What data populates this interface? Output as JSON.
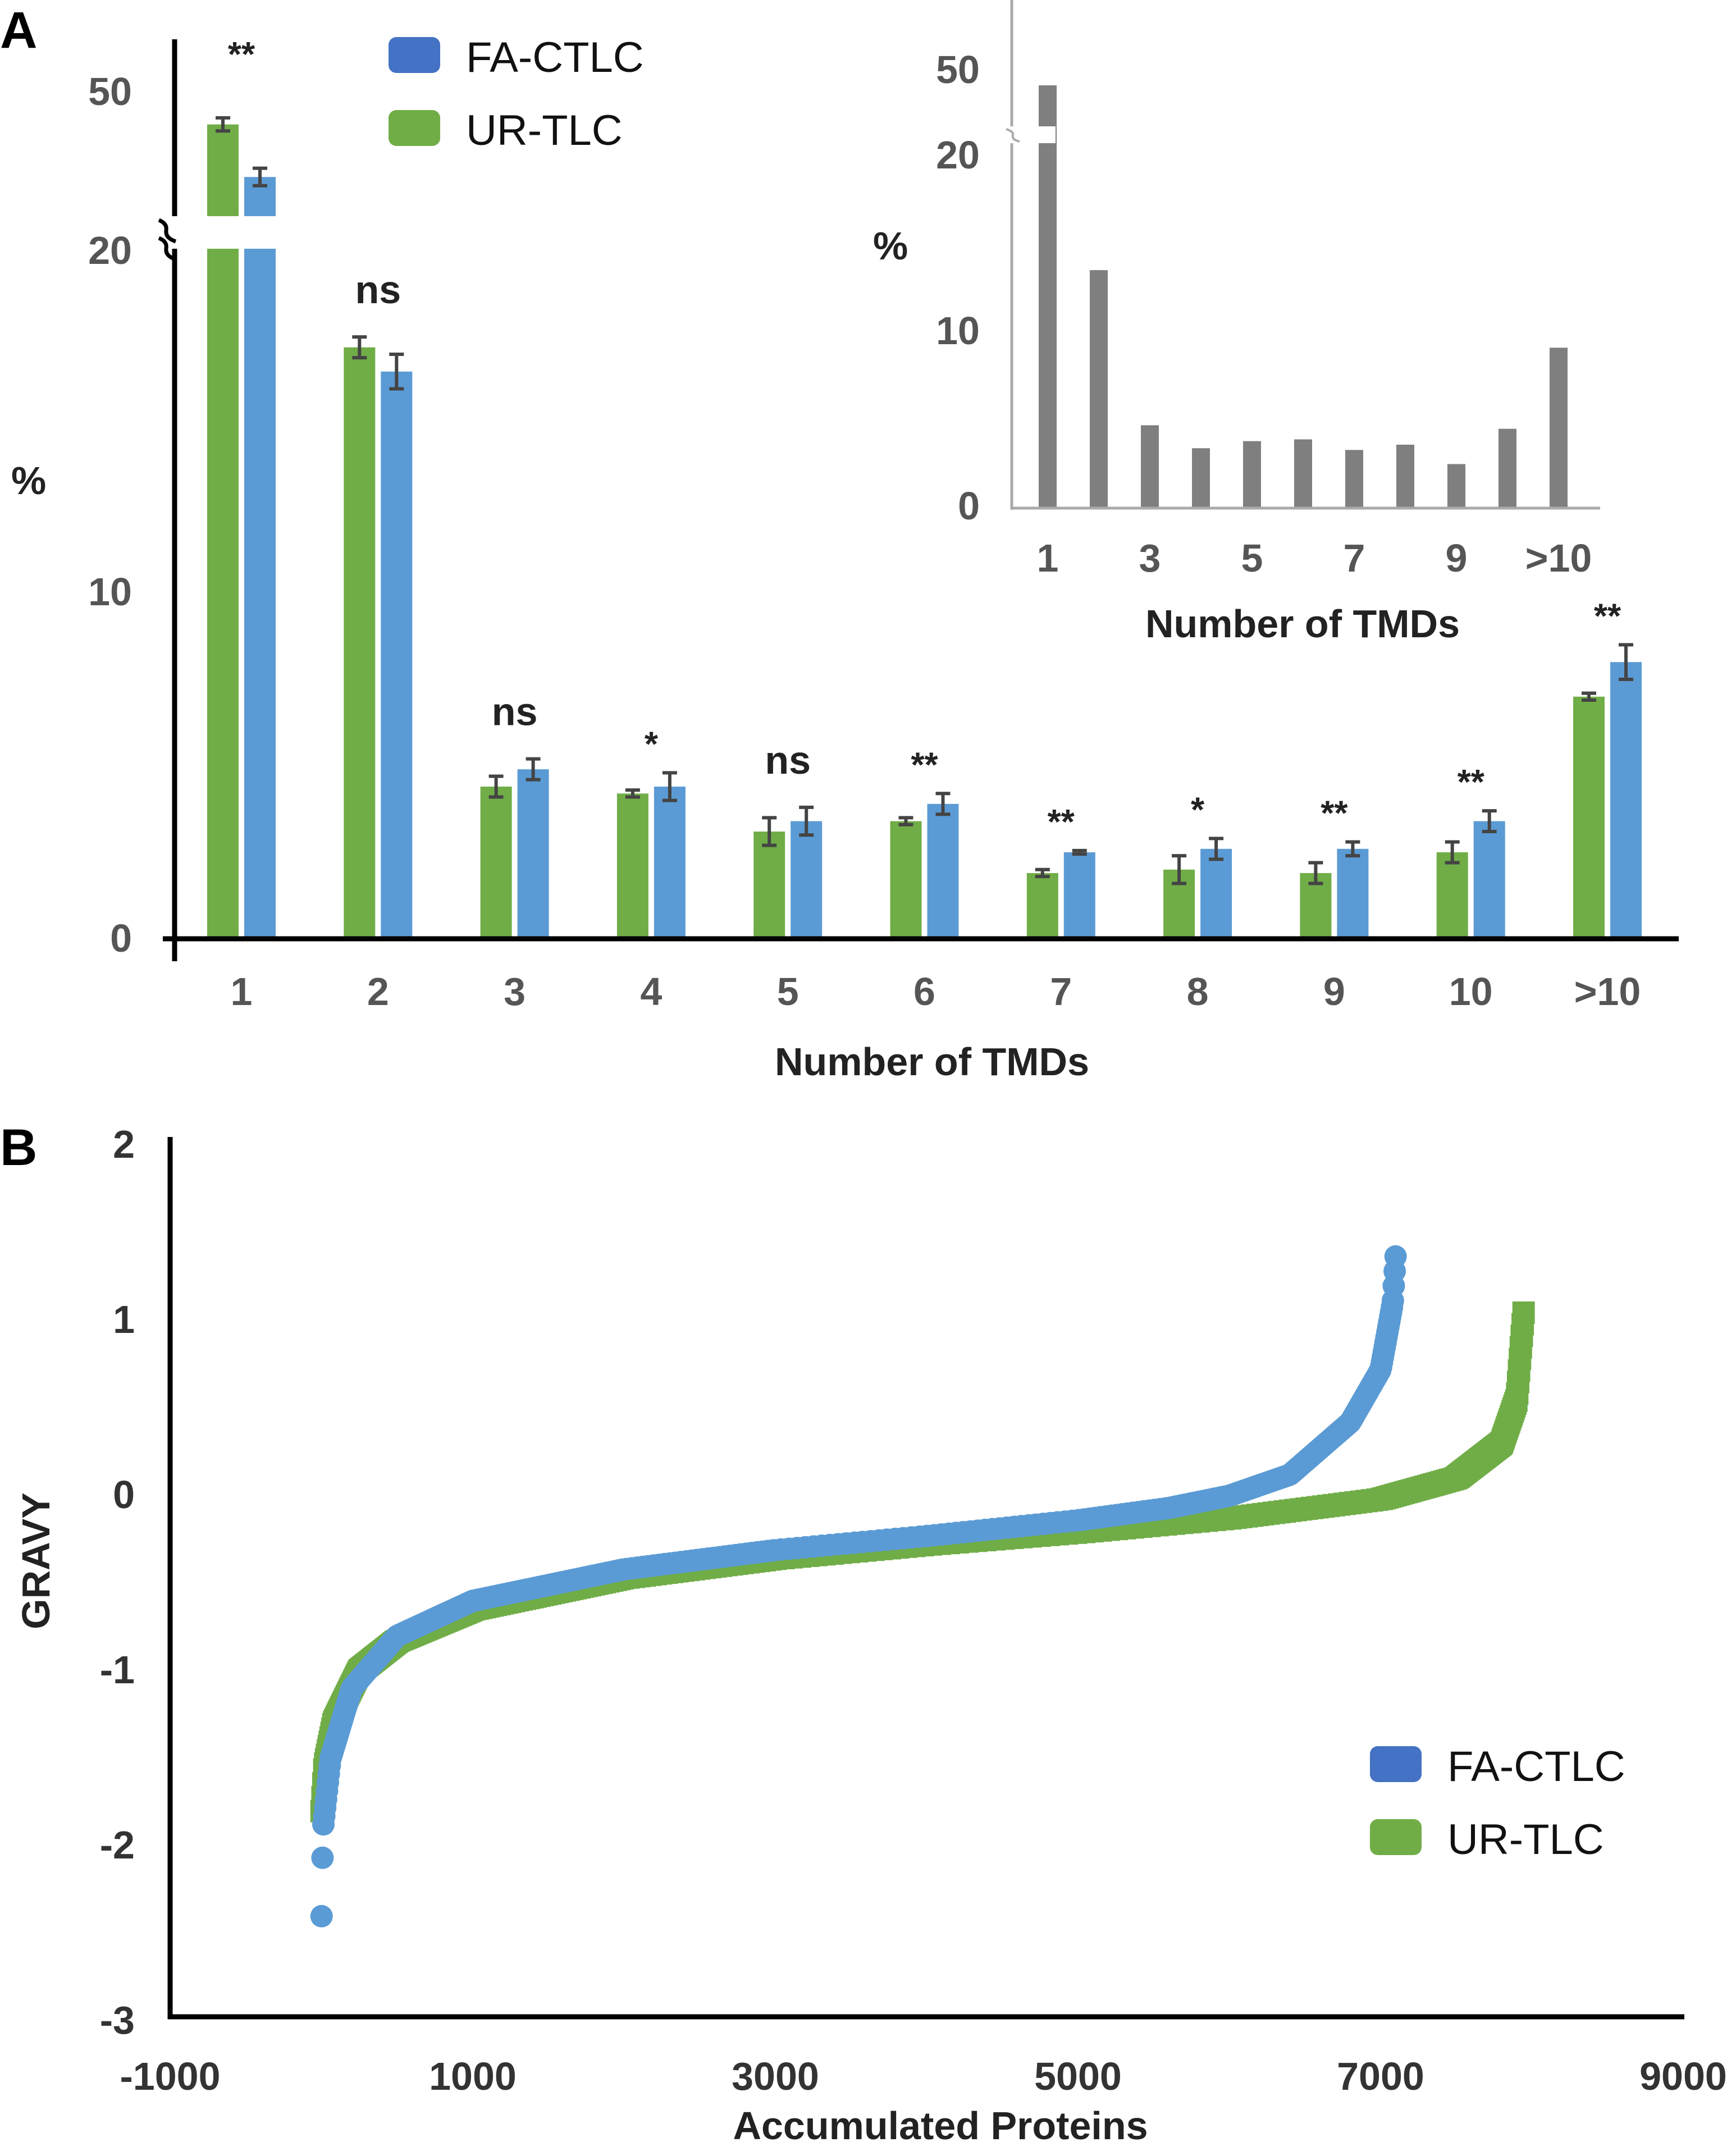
{
  "chart_data": [
    {
      "panel": "A",
      "type": "bar",
      "xlabel": "Number of TMDs",
      "ylabel": "%",
      "categories": [
        "1",
        "2",
        "3",
        "4",
        "5",
        "6",
        "7",
        "8",
        "9",
        "10",
        ">10"
      ],
      "y_ticks": [
        "0",
        "10",
        "20",
        "50"
      ],
      "axis_break": true,
      "series": [
        {
          "name": "UR-TLC",
          "color": "#70AD47",
          "values": [
            48,
            17.1,
            4.4,
            4.2,
            3.1,
            3.4,
            1.9,
            2.0,
            1.9,
            2.5,
            7.0
          ],
          "errors": [
            1.5,
            0.3,
            0.3,
            0.1,
            0.4,
            0.1,
            0.1,
            0.4,
            0.3,
            0.3,
            0.1
          ]
        },
        {
          "name": "FA-CTLC",
          "color": "#5B9BD5",
          "values": [
            36,
            16.4,
            4.9,
            4.4,
            3.4,
            3.9,
            2.5,
            2.6,
            2.6,
            3.4,
            8.0
          ],
          "errors": [
            2.0,
            0.5,
            0.3,
            0.4,
            0.4,
            0.3,
            0.05,
            0.3,
            0.2,
            0.3,
            0.5
          ]
        }
      ],
      "significance": [
        "**",
        "ns",
        "ns",
        "*",
        "ns",
        "**",
        "**",
        "*",
        "**",
        "**",
        "**"
      ],
      "legend": [
        {
          "label": "FA-CTLC",
          "color": "#4472C4"
        },
        {
          "label": "UR-TLC",
          "color": "#70AD47"
        }
      ],
      "inset": {
        "type": "bar",
        "xlabel": "Number of TMDs",
        "ylabel": "%",
        "categories": [
          "1",
          "2",
          "3",
          "4",
          "5",
          "6",
          "7",
          "8",
          "9",
          "10",
          ">10"
        ],
        "tick_labels": [
          "1",
          "3",
          "5",
          "7",
          "9",
          ">10"
        ],
        "y_ticks": [
          "0",
          "10",
          "20",
          "50"
        ],
        "values": [
          45,
          13.5,
          4.7,
          3.4,
          3.8,
          3.9,
          3.3,
          3.6,
          2.5,
          4.5,
          9.1
        ],
        "color": "#7F7F7F"
      }
    },
    {
      "panel": "B",
      "type": "scatter",
      "xlabel": "Accumulated Proteins",
      "ylabel": "GRAVY",
      "x_ticks": [
        "-1000",
        "1000",
        "3000",
        "5000",
        "7000",
        "9000"
      ],
      "y_ticks": [
        "2",
        "1",
        "0",
        "-1",
        "-2",
        "-3"
      ],
      "xlim": [
        -1000,
        9000
      ],
      "ylim": [
        -3,
        2
      ],
      "series": [
        {
          "name": "FA-CTLC",
          "color": "#5B9BD5",
          "n": 7100,
          "curve": [
            [
              1,
              -2.4
            ],
            [
              10,
              -1.9
            ],
            [
              60,
              -1.5
            ],
            [
              200,
              -1.1
            ],
            [
              500,
              -0.8
            ],
            [
              1000,
              -0.6
            ],
            [
              2000,
              -0.42
            ],
            [
              3000,
              -0.31
            ],
            [
              4000,
              -0.23
            ],
            [
              5000,
              -0.14
            ],
            [
              5600,
              -0.07
            ],
            [
              6000,
              0.0
            ],
            [
              6400,
              0.12
            ],
            [
              6800,
              0.42
            ],
            [
              7000,
              0.72
            ],
            [
              7080,
              1.1
            ],
            [
              7100,
              1.38
            ]
          ]
        },
        {
          "name": "UR-TLC",
          "color": "#70AD47",
          "n": 7950,
          "curve": [
            [
              1,
              -1.8
            ],
            [
              20,
              -1.55
            ],
            [
              80,
              -1.3
            ],
            [
              250,
              -1.0
            ],
            [
              500,
              -0.83
            ],
            [
              1000,
              -0.65
            ],
            [
              2000,
              -0.47
            ],
            [
              3000,
              -0.36
            ],
            [
              4000,
              -0.28
            ],
            [
              5000,
              -0.21
            ],
            [
              6000,
              -0.13
            ],
            [
              7000,
              -0.02
            ],
            [
              7500,
              0.1
            ],
            [
              7800,
              0.3
            ],
            [
              7900,
              0.55
            ],
            [
              7950,
              1.1
            ]
          ]
        }
      ],
      "legend": [
        {
          "label": "FA-CTLC",
          "color": "#4472C4"
        },
        {
          "label": "UR-TLC",
          "color": "#70AD47"
        }
      ]
    }
  ]
}
